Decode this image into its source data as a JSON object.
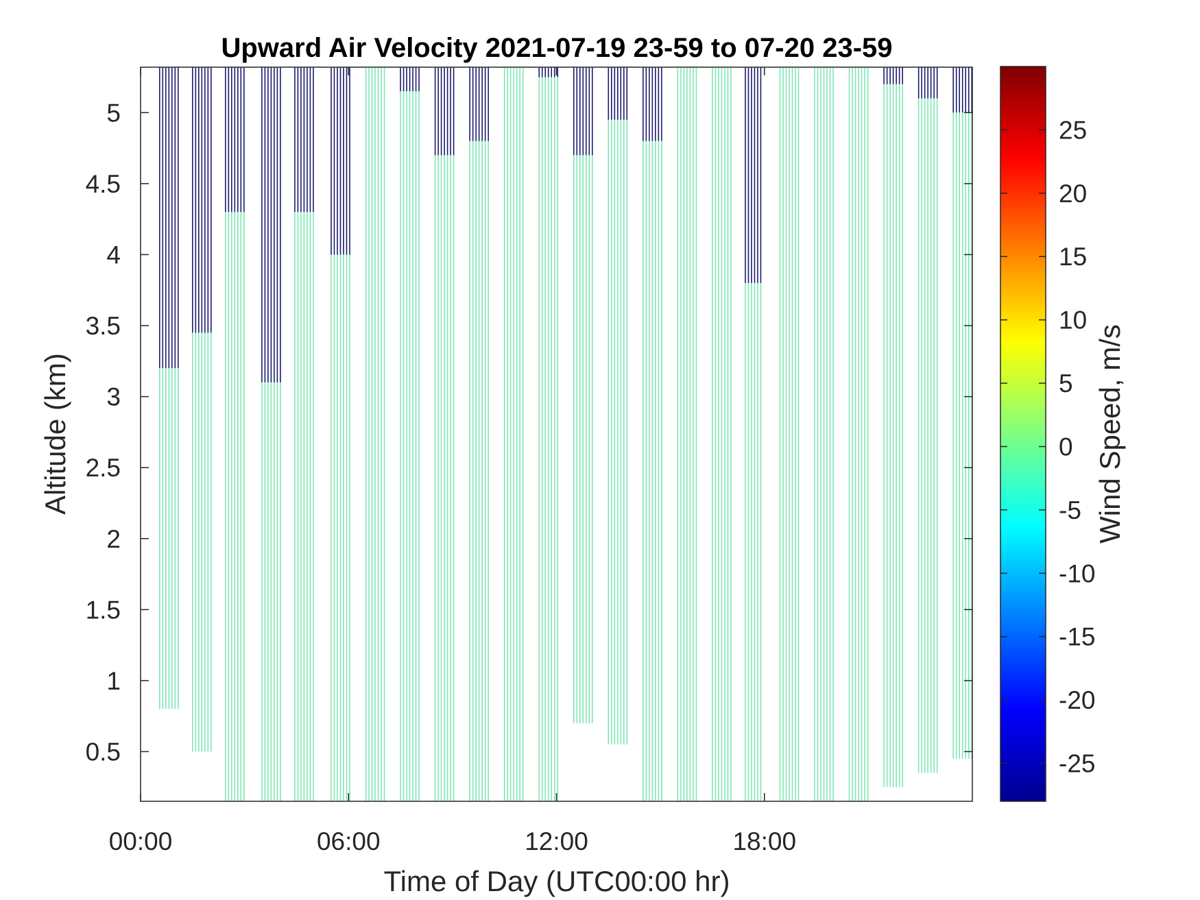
{
  "chart_data": {
    "type": "heatmap",
    "title": "Upward Air Velocity 2021-07-19 23-59 to 07-20 23-59",
    "xlabel": "Time of Day (UTC00:00 hr)",
    "ylabel": "Altitude (km)",
    "x_range_hours": [
      0,
      24
    ],
    "xticks": [
      0,
      6,
      12,
      18
    ],
    "xtick_labels": [
      "00:00",
      "06:00",
      "12:00",
      "18:00"
    ],
    "ylim": [
      0.15,
      5.32
    ],
    "yticks": [
      0.5,
      1,
      1.5,
      2,
      2.5,
      3,
      3.5,
      4,
      4.5,
      5
    ],
    "ytick_labels": [
      "0.5",
      "1",
      "1.5",
      "2",
      "2.5",
      "3",
      "3.5",
      "4",
      "4.5",
      "5"
    ],
    "colorbar": {
      "label": "Wind Speed, m/s",
      "colormap": "jet",
      "range": [
        -28,
        30
      ],
      "ticks": [
        -25,
        -20,
        -15,
        -10,
        -5,
        0,
        5,
        10,
        15,
        20,
        25
      ],
      "tick_labels": [
        "-25",
        "-20",
        "-15",
        "-10",
        "-5",
        "0",
        "5",
        "10",
        "15",
        "20",
        "25"
      ]
    },
    "colors": {
      "near_zero": "#7fe6b4",
      "strong_downward": "#1a1a6e"
    },
    "grid": false,
    "scan_blocks": [
      {
        "start_h": 0.55,
        "end_h": 1.1,
        "bottom_km": 0.8,
        "dark_from_km": 3.2
      },
      {
        "start_h": 1.5,
        "end_h": 2.05,
        "bottom_km": 0.5,
        "dark_from_km": 3.45
      },
      {
        "start_h": 2.45,
        "end_h": 3.0,
        "bottom_km": 0.15,
        "dark_from_km": 4.3
      },
      {
        "start_h": 3.5,
        "end_h": 4.05,
        "bottom_km": 0.15,
        "dark_from_km": 3.1
      },
      {
        "start_h": 4.45,
        "end_h": 5.0,
        "bottom_km": 0.15,
        "dark_from_km": 4.3
      },
      {
        "start_h": 5.5,
        "end_h": 6.05,
        "bottom_km": 0.15,
        "dark_from_km": 4.0
      },
      {
        "start_h": 6.5,
        "end_h": 7.05,
        "bottom_km": 0.15,
        "dark_from_km": null
      },
      {
        "start_h": 7.5,
        "end_h": 8.05,
        "bottom_km": 0.15,
        "dark_from_km": 5.15
      },
      {
        "start_h": 8.5,
        "end_h": 9.05,
        "bottom_km": 0.15,
        "dark_from_km": 4.7
      },
      {
        "start_h": 9.5,
        "end_h": 10.05,
        "bottom_km": 0.15,
        "dark_from_km": 4.8
      },
      {
        "start_h": 10.5,
        "end_h": 11.05,
        "bottom_km": 0.15,
        "dark_from_km": null
      },
      {
        "start_h": 11.5,
        "end_h": 12.05,
        "bottom_km": 0.15,
        "dark_from_km": 5.25
      },
      {
        "start_h": 12.5,
        "end_h": 13.05,
        "bottom_km": 0.7,
        "dark_from_km": 4.7
      },
      {
        "start_h": 13.5,
        "end_h": 14.05,
        "bottom_km": 0.55,
        "dark_from_km": 4.95
      },
      {
        "start_h": 14.5,
        "end_h": 15.05,
        "bottom_km": 0.15,
        "dark_from_km": 4.8
      },
      {
        "start_h": 15.5,
        "end_h": 16.05,
        "bottom_km": 0.15,
        "dark_from_km": null
      },
      {
        "start_h": 16.5,
        "end_h": 17.05,
        "bottom_km": 0.15,
        "dark_from_km": null
      },
      {
        "start_h": 17.45,
        "end_h": 17.95,
        "bottom_km": 0.15,
        "dark_from_km": 3.8
      },
      {
        "start_h": 18.45,
        "end_h": 19.0,
        "bottom_km": 0.15,
        "dark_from_km": null
      },
      {
        "start_h": 19.45,
        "end_h": 20.0,
        "bottom_km": 0.15,
        "dark_from_km": null
      },
      {
        "start_h": 20.45,
        "end_h": 21.0,
        "bottom_km": 0.15,
        "dark_from_km": null
      },
      {
        "start_h": 21.45,
        "end_h": 22.0,
        "bottom_km": 0.25,
        "dark_from_km": 5.2
      },
      {
        "start_h": 22.45,
        "end_h": 23.0,
        "bottom_km": 0.35,
        "dark_from_km": 5.1
      },
      {
        "start_h": 23.45,
        "end_h": 24.0,
        "bottom_km": 0.45,
        "dark_from_km": 5.0
      }
    ]
  }
}
